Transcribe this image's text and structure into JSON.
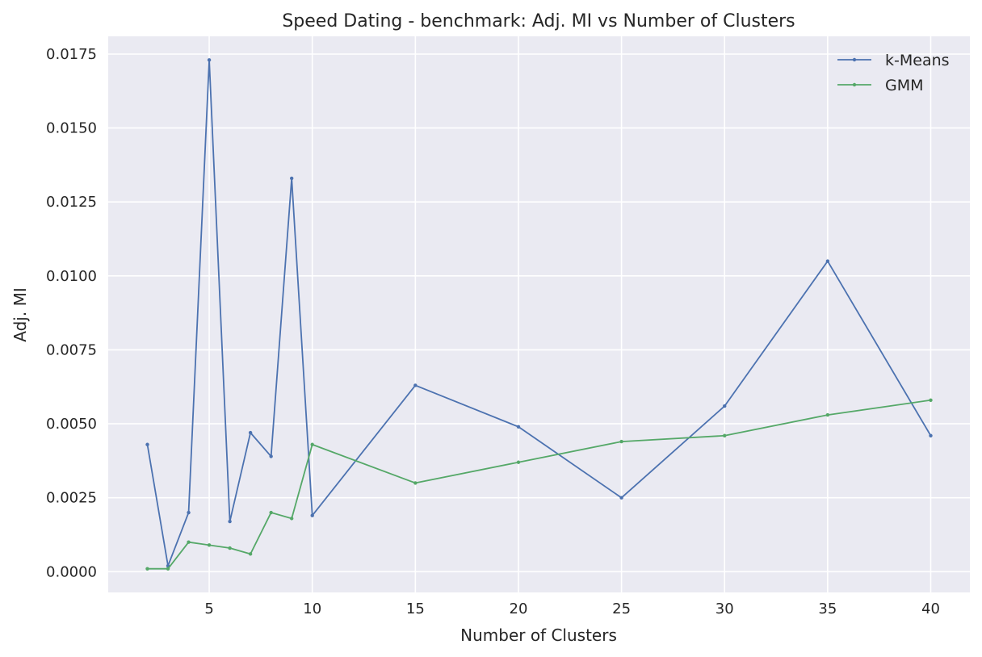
{
  "chart_data": {
    "type": "line",
    "title": "Speed Dating - benchmark: Adj. MI vs Number of Clusters",
    "xlabel": "Number of Clusters",
    "ylabel": "Adj. MI",
    "xlim": [
      0.1,
      41.9
    ],
    "ylim": [
      -0.0007,
      0.0181
    ],
    "xticks": [
      5,
      10,
      15,
      20,
      25,
      30,
      35,
      40
    ],
    "yticks": [
      0.0,
      0.0025,
      0.005,
      0.0075,
      0.01,
      0.0125,
      0.015,
      0.0175
    ],
    "ytick_labels": [
      "0.0000",
      "0.0025",
      "0.0050",
      "0.0075",
      "0.0100",
      "0.0125",
      "0.0150",
      "0.0175"
    ],
    "grid": true,
    "legend_position": "top-right",
    "x": [
      2,
      3,
      4,
      5,
      6,
      7,
      8,
      9,
      10,
      15,
      20,
      25,
      30,
      35,
      40
    ],
    "series": [
      {
        "name": "k-Means",
        "color": "#4c72b0",
        "values": [
          0.0043,
          0.0002,
          0.002,
          0.0173,
          0.0017,
          0.0047,
          0.0039,
          0.0133,
          0.0019,
          0.0063,
          0.0049,
          0.0025,
          0.0056,
          0.0105,
          0.0046
        ]
      },
      {
        "name": "GMM",
        "color": "#55a868",
        "values": [
          0.0001,
          0.0001,
          0.001,
          0.0009,
          0.0008,
          0.0006,
          0.002,
          0.0018,
          0.0043,
          0.003,
          0.0037,
          0.0044,
          0.0046,
          0.0053,
          0.0058
        ]
      }
    ]
  }
}
